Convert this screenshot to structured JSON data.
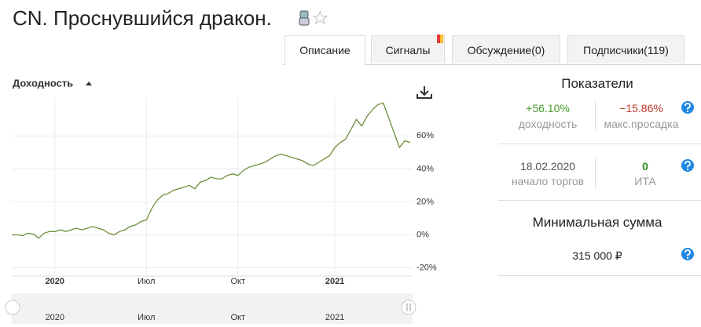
{
  "header": {
    "title": "CN. Проснувшийся дракон."
  },
  "tabs": [
    "Описание",
    "Сигналы",
    "Обсуждение(0)",
    "Подписчики(119)"
  ],
  "stats": {
    "title": "Показатели",
    "rows": [
      [
        {
          "value": "+56.10%",
          "label": "доходность"
        },
        {
          "value": "−15.86%",
          "label": "макс.просадка"
        }
      ],
      [
        {
          "value": "18.02.2020",
          "label": "начало торгов"
        },
        {
          "value": "0",
          "label": "ИТА"
        }
      ]
    ],
    "min_sum_title": "Минимальная сумма",
    "min_sum": "315 000 ₽"
  },
  "chart_data": {
    "type": "line",
    "title": "Доходность",
    "categories": [
      null,
      null,
      null,
      null,
      null,
      null,
      null,
      null,
      "2020",
      null,
      null,
      null,
      null,
      null,
      null,
      null,
      null,
      null,
      null,
      null,
      null,
      null,
      null,
      null,
      null,
      "Июл",
      null,
      null,
      null,
      null,
      null,
      null,
      null,
      null,
      null,
      null,
      null,
      null,
      null,
      null,
      null,
      null,
      "Окт",
      null,
      null,
      null,
      null,
      null,
      null,
      null,
      null,
      null,
      null,
      null,
      null,
      null,
      null,
      null,
      null,
      null,
      "2021",
      null,
      null,
      null,
      null,
      null,
      null,
      null,
      null,
      null,
      null,
      null,
      null,
      null,
      null
    ],
    "values": [
      0,
      0,
      -0.5,
      1,
      0.5,
      -2,
      1,
      2,
      2,
      3,
      2,
      3,
      4,
      3,
      4,
      5,
      4,
      3,
      1,
      0,
      2,
      3,
      5,
      6,
      8,
      9,
      16,
      21,
      24,
      25,
      27,
      28,
      29,
      30,
      28,
      32,
      33,
      35,
      34,
      34,
      36,
      37,
      36,
      39,
      41,
      42,
      43,
      44,
      46,
      48,
      49,
      48,
      47,
      46,
      45,
      43,
      42,
      44,
      46,
      48,
      53,
      56,
      58,
      64,
      70,
      66,
      72,
      76,
      79,
      80,
      71,
      62,
      53,
      57,
      56
    ],
    "color": "#6d8f3a",
    "ylim": [
      -25,
      83
    ],
    "yticks": [
      {
        "value": -20,
        "label": "-20%"
      },
      {
        "value": 0,
        "label": "0%"
      },
      {
        "value": 20,
        "label": "20%"
      },
      {
        "value": 40,
        "label": "40%"
      },
      {
        "value": 60,
        "label": "60%"
      }
    ],
    "grid": true
  }
}
